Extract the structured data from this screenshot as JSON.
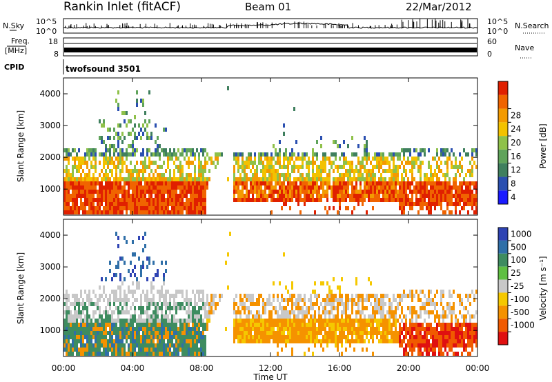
{
  "header": {
    "station": "Rankin Inlet (fitACF)",
    "beam": "Beam 01",
    "date": "22/Mar/2012"
  },
  "status_panels": {
    "nsky_label": "N.Sky",
    "nsearch_label": "N.Search",
    "freq_label_line1": "Freq.",
    "freq_label_line2": "[MHz]",
    "nave_label": "Nave",
    "cpid_label": "CPID",
    "cpid_value": "twofsound 3501",
    "noise_ticks_left": [
      "10^5",
      "10^0"
    ],
    "noise_ticks_right": [
      "10^5",
      "10^0"
    ],
    "freq_ticks": [
      "18",
      "8"
    ],
    "nave_ticks": [
      "60",
      "0"
    ]
  },
  "chart_data": [
    {
      "type": "heatmap",
      "title": "",
      "ylabel": "Slant Range [km]",
      "ylim": [
        180,
        4500
      ],
      "yticks": [
        1000,
        2000,
        3000,
        4000
      ],
      "colorbar": {
        "label": "Power [dB]",
        "range": [
          0,
          32
        ],
        "ticks": [
          "4",
          "8",
          "12",
          "16",
          "20",
          "24",
          "28"
        ],
        "colors": [
          "#1a1aff",
          "#2a4fb0",
          "#3f7f5e",
          "#5fa35a",
          "#8fc14a",
          "#f3c200",
          "#f39a00",
          "#f06400",
          "#e02000"
        ]
      }
    },
    {
      "type": "heatmap",
      "title": "",
      "ylabel": "Slant Range [km]",
      "xlabel": "Time UT",
      "ylim": [
        180,
        4500
      ],
      "yticks": [
        1000,
        2000,
        3000,
        4000
      ],
      "xticks": [
        "00:00",
        "04:00",
        "08:00",
        "12:00",
        "16:00",
        "20:00",
        "00:00"
      ],
      "colorbar": {
        "label": "Velocity [m s⁻¹]",
        "ticks": [
          "1000",
          "500",
          "100",
          "25",
          "-25",
          "-100",
          "-500",
          "-1000"
        ],
        "colors": [
          "#2e43b3",
          "#2f6fa8",
          "#3e8c60",
          "#5fbf42",
          "#c8c8c8",
          "#f5c800",
          "#f59200",
          "#f05a00",
          "#e01010"
        ]
      }
    }
  ]
}
